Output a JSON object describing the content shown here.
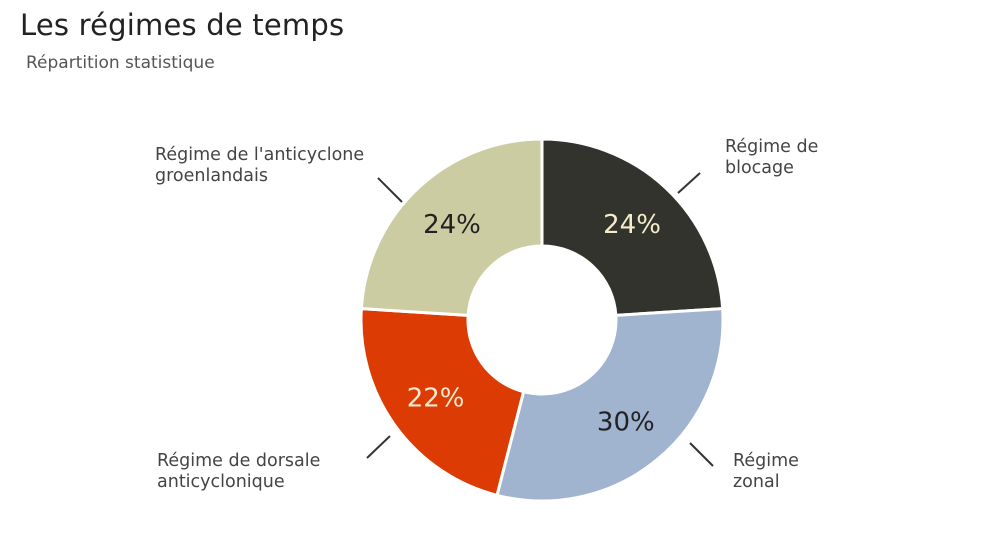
{
  "title": "Les régimes de temps",
  "subtitle": "Répartition statistique",
  "chart_data": {
    "type": "pie",
    "donut": true,
    "slices": [
      {
        "name": "Régime de blocage",
        "label_lines": [
          "Régime de",
          "blocage"
        ],
        "value": 24,
        "label": "24%",
        "color": "#33332d",
        "text_color": "#f4edc9"
      },
      {
        "name": "Régime zonal",
        "label_lines": [
          "Régime",
          "zonal"
        ],
        "value": 30,
        "label": "30%",
        "color": "#a0b3cf",
        "text_color": "#222222"
      },
      {
        "name": "Régime de dorsale anticyclonique",
        "label_lines": [
          "Régime de dorsale",
          "anticyclonique"
        ],
        "value": 22,
        "label": "22%",
        "color": "#dc3c04",
        "text_color": "#f7ead0"
      },
      {
        "name": "Régime de l'anticyclone groenlandais",
        "label_lines": [
          "Régime de l'anticyclone",
          "groenlandais"
        ],
        "value": 24,
        "label": "24%",
        "color": "#cccca3",
        "text_color": "#222222"
      }
    ]
  }
}
